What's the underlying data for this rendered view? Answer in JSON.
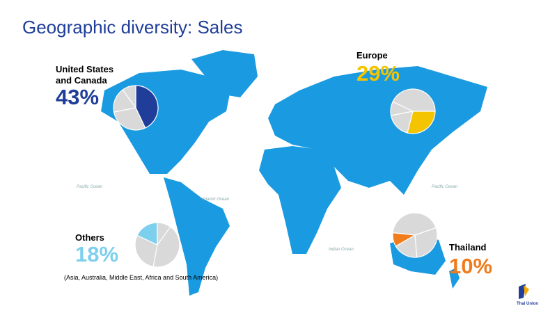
{
  "chart_data": {
    "type": "pie",
    "title": "Geographic diversity: Sales",
    "categories": [
      "United States and Canada",
      "Europe",
      "Others",
      "Thailand"
    ],
    "values": [
      43,
      29,
      18,
      10
    ],
    "value_labels": [
      "43%",
      "29%",
      "18%",
      "10%"
    ],
    "colors": [
      "#1f3d99",
      "#f5c400",
      "#7dcfee",
      "#f07c1c"
    ],
    "other_color": "#d9d9d9",
    "note": "(Asia, Australia, Middle East, Africa and South America)",
    "annotations": [
      "Pacific Ocean",
      "Atlantic Ocean",
      "Indian Ocean",
      "Pacific Ocean"
    ]
  },
  "logo": "Thai Union"
}
